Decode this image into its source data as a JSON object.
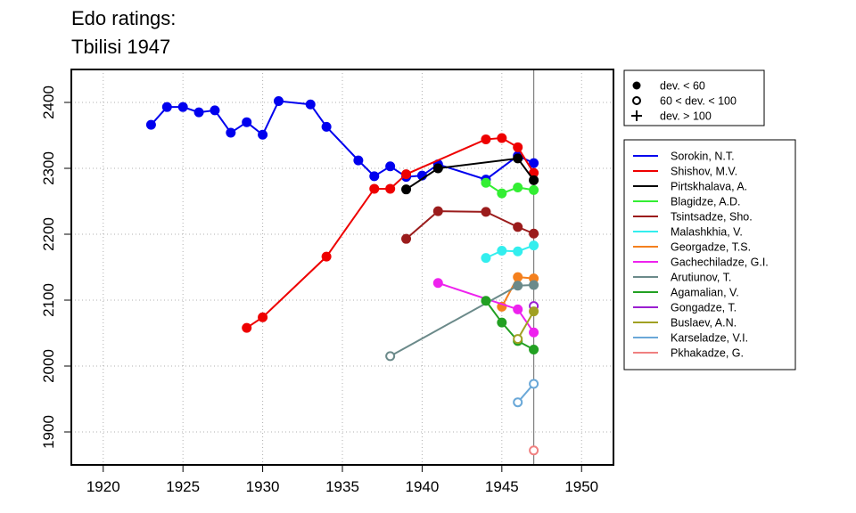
{
  "chart_data": {
    "type": "line",
    "title_line1": "Edo ratings:",
    "title_line2": "Tbilisi 1947",
    "xlabel": "",
    "ylabel": "",
    "xlim": [
      1918,
      1952
    ],
    "ylim": [
      1850,
      2450
    ],
    "x_ticks": [
      1920,
      1925,
      1930,
      1935,
      1940,
      1945,
      1950
    ],
    "y_ticks": [
      1900,
      2000,
      2100,
      2200,
      2300,
      2400
    ],
    "grid": true,
    "marker_line_x": 1947,
    "marker_legend": [
      {
        "symbol": "filled-circle",
        "label": "dev. < 60"
      },
      {
        "symbol": "open-circle",
        "label": "60 < dev. < 100"
      },
      {
        "symbol": "plus",
        "label": "dev. > 100"
      }
    ],
    "series": [
      {
        "name": "Sorokin, N.T.",
        "color": "#0000ee",
        "points": [
          {
            "x": 1923,
            "y": 2366,
            "m": "f"
          },
          {
            "x": 1924,
            "y": 2393,
            "m": "f"
          },
          {
            "x": 1925,
            "y": 2393,
            "m": "f"
          },
          {
            "x": 1926,
            "y": 2385,
            "m": "f"
          },
          {
            "x": 1927,
            "y": 2388,
            "m": "f"
          },
          {
            "x": 1928,
            "y": 2354,
            "m": "f"
          },
          {
            "x": 1929,
            "y": 2370,
            "m": "f"
          },
          {
            "x": 1930,
            "y": 2351,
            "m": "f"
          },
          {
            "x": 1931,
            "y": 2402,
            "m": "f"
          },
          {
            "x": 1933,
            "y": 2397,
            "m": "f"
          },
          {
            "x": 1934,
            "y": 2363,
            "m": "f"
          },
          {
            "x": 1936,
            "y": 2312,
            "m": "f"
          },
          {
            "x": 1937,
            "y": 2288,
            "m": "f"
          },
          {
            "x": 1938,
            "y": 2303,
            "m": "f"
          },
          {
            "x": 1939,
            "y": 2287,
            "m": "f"
          },
          {
            "x": 1940,
            "y": 2289,
            "m": "f"
          },
          {
            "x": 1941,
            "y": 2306,
            "m": "f"
          },
          {
            "x": 1944,
            "y": 2283,
            "m": "f"
          },
          {
            "x": 1946,
            "y": 2319,
            "m": "f"
          },
          {
            "x": 1947,
            "y": 2308,
            "m": "f"
          }
        ]
      },
      {
        "name": "Shishov, M.V.",
        "color": "#ee0000",
        "points": [
          {
            "x": 1929,
            "y": 2058,
            "m": "f"
          },
          {
            "x": 1930,
            "y": 2074,
            "m": "f"
          },
          {
            "x": 1934,
            "y": 2166,
            "m": "f"
          },
          {
            "x": 1937,
            "y": 2269,
            "m": "f"
          },
          {
            "x": 1938,
            "y": 2269,
            "m": "f"
          },
          {
            "x": 1939,
            "y": 2291,
            "m": "f"
          },
          {
            "x": 1944,
            "y": 2344,
            "m": "f"
          },
          {
            "x": 1945,
            "y": 2346,
            "m": "f"
          },
          {
            "x": 1946,
            "y": 2332,
            "m": "f"
          },
          {
            "x": 1947,
            "y": 2293,
            "m": "f"
          }
        ]
      },
      {
        "name": "Pirtskhalava, A.",
        "color": "#000000",
        "points": [
          {
            "x": 1939,
            "y": 2268,
            "m": "f"
          },
          {
            "x": 1941,
            "y": 2300,
            "m": "f"
          },
          {
            "x": 1946,
            "y": 2315,
            "m": "f"
          },
          {
            "x": 1947,
            "y": 2282,
            "m": "f"
          }
        ]
      },
      {
        "name": "Blagidze, A.D.",
        "color": "#33ee33",
        "points": [
          {
            "x": 1944,
            "y": 2278,
            "m": "f"
          },
          {
            "x": 1945,
            "y": 2262,
            "m": "f"
          },
          {
            "x": 1946,
            "y": 2271,
            "m": "f"
          },
          {
            "x": 1947,
            "y": 2267,
            "m": "f"
          }
        ]
      },
      {
        "name": "Tsintsadze, Sho.",
        "color": "#9b1c1c",
        "points": [
          {
            "x": 1939,
            "y": 2193,
            "m": "f"
          },
          {
            "x": 1941,
            "y": 2235,
            "m": "f"
          },
          {
            "x": 1944,
            "y": 2234,
            "m": "f"
          },
          {
            "x": 1946,
            "y": 2211,
            "m": "f"
          },
          {
            "x": 1947,
            "y": 2201,
            "m": "f"
          }
        ]
      },
      {
        "name": "Malashkhia, V.",
        "color": "#33eeee",
        "points": [
          {
            "x": 1944,
            "y": 2164,
            "m": "f"
          },
          {
            "x": 1945,
            "y": 2175,
            "m": "f"
          },
          {
            "x": 1946,
            "y": 2174,
            "m": "f"
          },
          {
            "x": 1947,
            "y": 2183,
            "m": "f"
          }
        ]
      },
      {
        "name": "Georgadze, T.S.",
        "color": "#f4801e",
        "points": [
          {
            "x": 1945,
            "y": 2090,
            "m": "f"
          },
          {
            "x": 1946,
            "y": 2135,
            "m": "f"
          },
          {
            "x": 1947,
            "y": 2133,
            "m": "f"
          }
        ]
      },
      {
        "name": "Gachechiladze, G.I.",
        "color": "#ee22ee",
        "points": [
          {
            "x": 1941,
            "y": 2126,
            "m": "f"
          },
          {
            "x": 1946,
            "y": 2086,
            "m": "f"
          },
          {
            "x": 1947,
            "y": 2051,
            "m": "f"
          }
        ]
      },
      {
        "name": "Arutiunov, T.",
        "color": "#6b8a8a",
        "points": [
          {
            "x": 1938,
            "y": 2015,
            "m": "o"
          },
          {
            "x": 1946,
            "y": 2122,
            "m": "f"
          },
          {
            "x": 1947,
            "y": 2123,
            "m": "f"
          }
        ]
      },
      {
        "name": "Agamalian, V.",
        "color": "#22a022",
        "points": [
          {
            "x": 1944,
            "y": 2099,
            "m": "f"
          },
          {
            "x": 1945,
            "y": 2066,
            "m": "f"
          },
          {
            "x": 1946,
            "y": 2038,
            "m": "f"
          },
          {
            "x": 1947,
            "y": 2025,
            "m": "f"
          }
        ]
      },
      {
        "name": "Gongadze, T.",
        "color": "#9a1fd0",
        "points": [
          {
            "x": 1947,
            "y": 2091,
            "m": "o"
          }
        ]
      },
      {
        "name": "Buslaev, A.N.",
        "color": "#a0a022",
        "points": [
          {
            "x": 1946,
            "y": 2041,
            "m": "o"
          },
          {
            "x": 1947,
            "y": 2083,
            "m": "f"
          }
        ]
      },
      {
        "name": "Karseladze, V.I.",
        "color": "#6aa8d8",
        "points": [
          {
            "x": 1946,
            "y": 1945,
            "m": "o"
          },
          {
            "x": 1947,
            "y": 1973,
            "m": "o"
          }
        ]
      },
      {
        "name": "Pkhakadze, G.",
        "color": "#f08080",
        "points": [
          {
            "x": 1947,
            "y": 1872,
            "m": "o"
          }
        ]
      }
    ]
  }
}
